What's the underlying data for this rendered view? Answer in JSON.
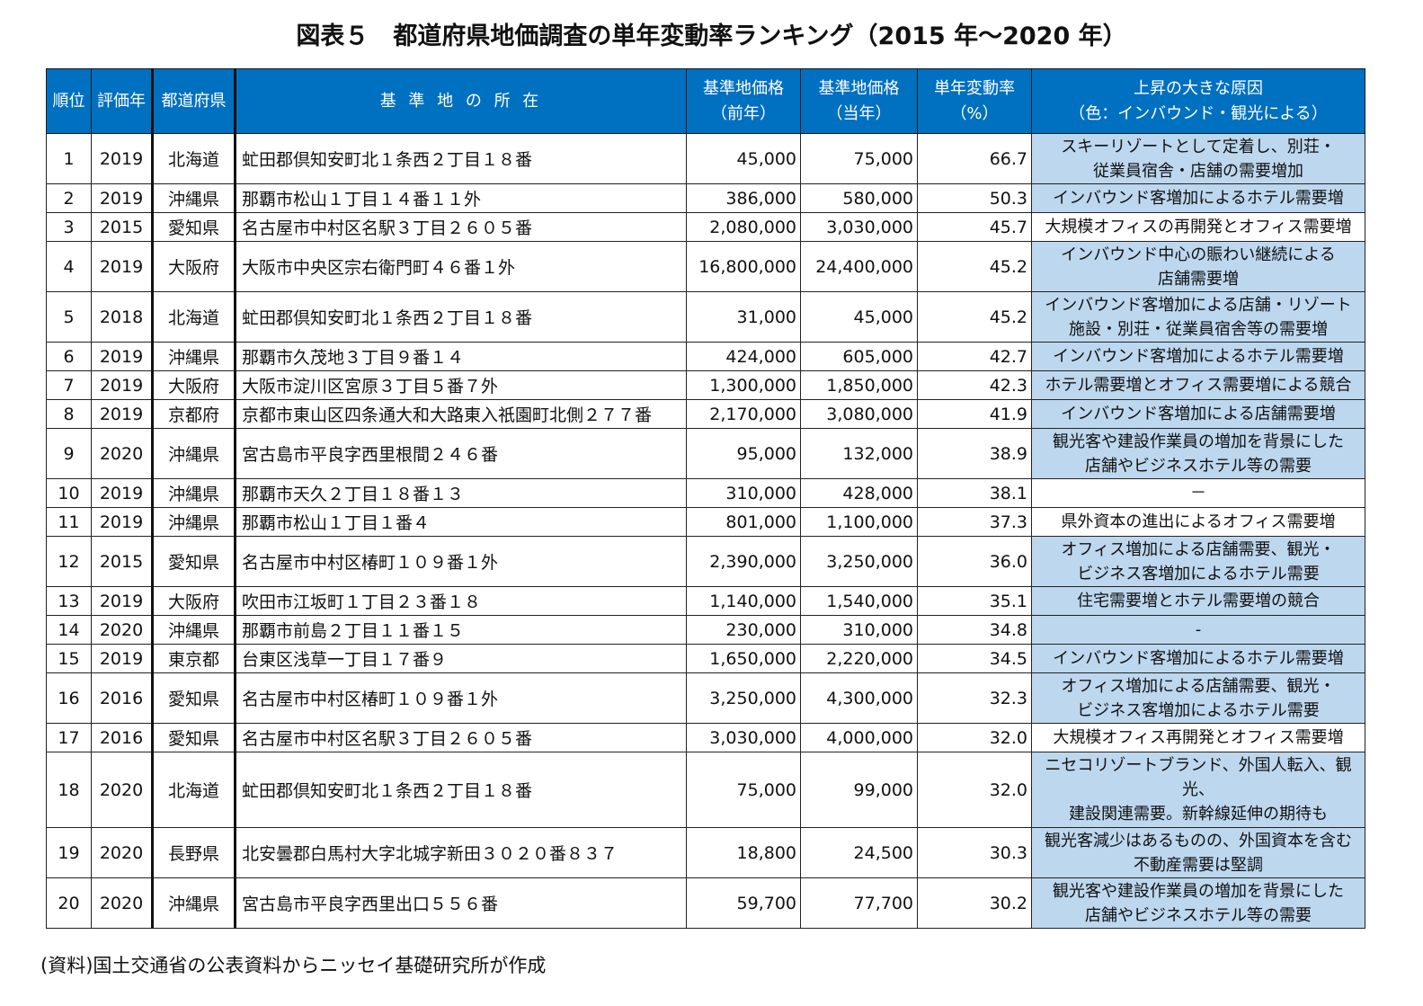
{
  "title": "図表５　都道府県地価調査の単年変動率ランキング（2015 年～2020 年）",
  "colors": {
    "header_bg": "#0070C0",
    "header_text": "#FFFFFF",
    "highlight_bg": "#BDD7EE"
  },
  "headers": {
    "rank": "順位",
    "year": "評価年",
    "prefecture": "都道府県",
    "location": "基 準 地 の 所 在",
    "price_prev_line1": "基準地価格",
    "price_prev_line2": "（前年）",
    "price_curr_line1": "基準地価格",
    "price_curr_line2": "（当年）",
    "change_line1": "単年変動率",
    "change_line2": "（%）",
    "reason_line1": "上昇の大きな原因",
    "reason_line2": "（色：インバウンド・観光による）"
  },
  "rows": [
    {
      "rank": "1",
      "year": "2019",
      "pref": "北海道",
      "loc": "虻田郡倶知安町北１条西２丁目１８番",
      "prev": "45,000",
      "curr": "75,000",
      "rate": "66.7",
      "reason": "スキーリゾートとして定着し、別荘・ 従業員宿舎・店舗の需要増加",
      "highlight": true,
      "size": 2
    },
    {
      "rank": "2",
      "year": "2019",
      "pref": "沖縄県",
      "loc": "那覇市松山１丁目１４番１１外",
      "prev": "386,000",
      "curr": "580,000",
      "rate": "50.3",
      "reason": "インバウンド客増加によるホテル需要増",
      "highlight": true,
      "size": 1
    },
    {
      "rank": "3",
      "year": "2015",
      "pref": "愛知県",
      "loc": "名古屋市中村区名駅３丁目２６０５番",
      "prev": "2,080,000",
      "curr": "3,030,000",
      "rate": "45.7",
      "reason": "大規模オフィスの再開発とオフィス需要増",
      "highlight": false,
      "size": 1
    },
    {
      "rank": "4",
      "year": "2019",
      "pref": "大阪府",
      "loc": "大阪市中央区宗右衛門町４６番１外",
      "prev": "16,800,000",
      "curr": "24,400,000",
      "rate": "45.2",
      "reason": "インバウンド中心の賑わい継続による 店舗需要増",
      "highlight": true,
      "size": 2
    },
    {
      "rank": "5",
      "year": "2018",
      "pref": "北海道",
      "loc": "虻田郡倶知安町北１条西２丁目１８番",
      "prev": "31,000",
      "curr": "45,000",
      "rate": "45.2",
      "reason": "インバウンド客増加による店舗・リゾート 施設・別荘・従業員宿舎等の需要増",
      "highlight": true,
      "size": 2
    },
    {
      "rank": "6",
      "year": "2019",
      "pref": "沖縄県",
      "loc": "那覇市久茂地３丁目９番１４",
      "prev": "424,000",
      "curr": "605,000",
      "rate": "42.7",
      "reason": "インバウンド客増加によるホテル需要増",
      "highlight": true,
      "size": 1
    },
    {
      "rank": "7",
      "year": "2019",
      "pref": "大阪府",
      "loc": "大阪市淀川区宮原３丁目５番７外",
      "prev": "1,300,000",
      "curr": "1,850,000",
      "rate": "42.3",
      "reason": "ホテル需要増とオフィス需要増による競合",
      "highlight": true,
      "size": 1
    },
    {
      "rank": "8",
      "year": "2019",
      "pref": "京都府",
      "loc": "京都市東山区四条通大和大路東入祇園町北側２７７番",
      "prev": "2,170,000",
      "curr": "3,080,000",
      "rate": "41.9",
      "reason": "インバウンド客増加による店舗需要増",
      "highlight": true,
      "size": 1
    },
    {
      "rank": "9",
      "year": "2020",
      "pref": "沖縄県",
      "loc": "宮古島市平良字西里根間２４６番",
      "prev": "95,000",
      "curr": "132,000",
      "rate": "38.9",
      "reason": "観光客や建設作業員の増加を背景にした 店舗やビジネスホテル等の需要",
      "highlight": true,
      "size": 2
    },
    {
      "rank": "10",
      "year": "2019",
      "pref": "沖縄県",
      "loc": "那覇市天久２丁目１８番１３",
      "prev": "310,000",
      "curr": "428,000",
      "rate": "38.1",
      "reason": "－",
      "highlight": false,
      "size": 1
    },
    {
      "rank": "11",
      "year": "2019",
      "pref": "沖縄県",
      "loc": "那覇市松山１丁目１番４",
      "prev": "801,000",
      "curr": "1,100,000",
      "rate": "37.3",
      "reason": "県外資本の進出によるオフィス需要増",
      "highlight": false,
      "size": 1
    },
    {
      "rank": "12",
      "year": "2015",
      "pref": "愛知県",
      "loc": "名古屋市中村区椿町１０９番１外",
      "prev": "2,390,000",
      "curr": "3,250,000",
      "rate": "36.0",
      "reason": "オフィス増加による店舗需要、観光・ ビジネス客増加によるホテル需要",
      "highlight": true,
      "size": 2
    },
    {
      "rank": "13",
      "year": "2019",
      "pref": "大阪府",
      "loc": "吹田市江坂町１丁目２３番１８",
      "prev": "1,140,000",
      "curr": "1,540,000",
      "rate": "35.1",
      "reason": "住宅需要増とホテル需要増の競合",
      "highlight": true,
      "size": 1
    },
    {
      "rank": "14",
      "year": "2020",
      "pref": "沖縄県",
      "loc": "那覇市前島２丁目１１番１５",
      "prev": "230,000",
      "curr": "310,000",
      "rate": "34.8",
      "reason": "-",
      "highlight": true,
      "size": 1
    },
    {
      "rank": "15",
      "year": "2019",
      "pref": "東京都",
      "loc": "台東区浅草一丁目１７番９",
      "prev": "1,650,000",
      "curr": "2,220,000",
      "rate": "34.5",
      "reason": "インバウンド客増加によるホテル需要増",
      "highlight": true,
      "size": 1
    },
    {
      "rank": "16",
      "year": "2016",
      "pref": "愛知県",
      "loc": "名古屋市中村区椿町１０９番１外",
      "prev": "3,250,000",
      "curr": "4,300,000",
      "rate": "32.3",
      "reason": "オフィス増加による店舗需要、観光・ ビジネス客増加によるホテル需要",
      "highlight": true,
      "size": 2
    },
    {
      "rank": "17",
      "year": "2016",
      "pref": "愛知県",
      "loc": "名古屋市中村区名駅３丁目２６０５番",
      "prev": "3,030,000",
      "curr": "4,000,000",
      "rate": "32.0",
      "reason": "大規模オフィス再開発とオフィス需要増",
      "highlight": false,
      "size": 1
    },
    {
      "rank": "18",
      "year": "2020",
      "pref": "北海道",
      "loc": "虻田郡倶知安町北１条西２丁目１８番",
      "prev": "75,000",
      "curr": "99,000",
      "rate": "32.0",
      "reason": "ニセコリゾートブランド、外国人転入、観光、 建設関連需要。新幹線延伸の期待も",
      "highlight": true,
      "size": 3
    },
    {
      "rank": "19",
      "year": "2020",
      "pref": "長野県",
      "loc": "北安曇郡白馬村大字北城字新田３０２０番８３７",
      "prev": "18,800",
      "curr": "24,500",
      "rate": "30.3",
      "reason": "観光客減少はあるものの、外国資本を含む 不動産需要は堅調",
      "highlight": true,
      "size": 2
    },
    {
      "rank": "20",
      "year": "2020",
      "pref": "沖縄県",
      "loc": "宮古島市平良字西里出口５５６番",
      "prev": "59,700",
      "curr": "77,700",
      "rate": "30.2",
      "reason": "観光客や建設作業員の増加を背景にした 店舗やビジネスホテル等の需要",
      "highlight": true,
      "size": 2
    }
  ],
  "footnote": "(資料)国土交通省の公表資料からニッセイ基礎研究所が作成"
}
